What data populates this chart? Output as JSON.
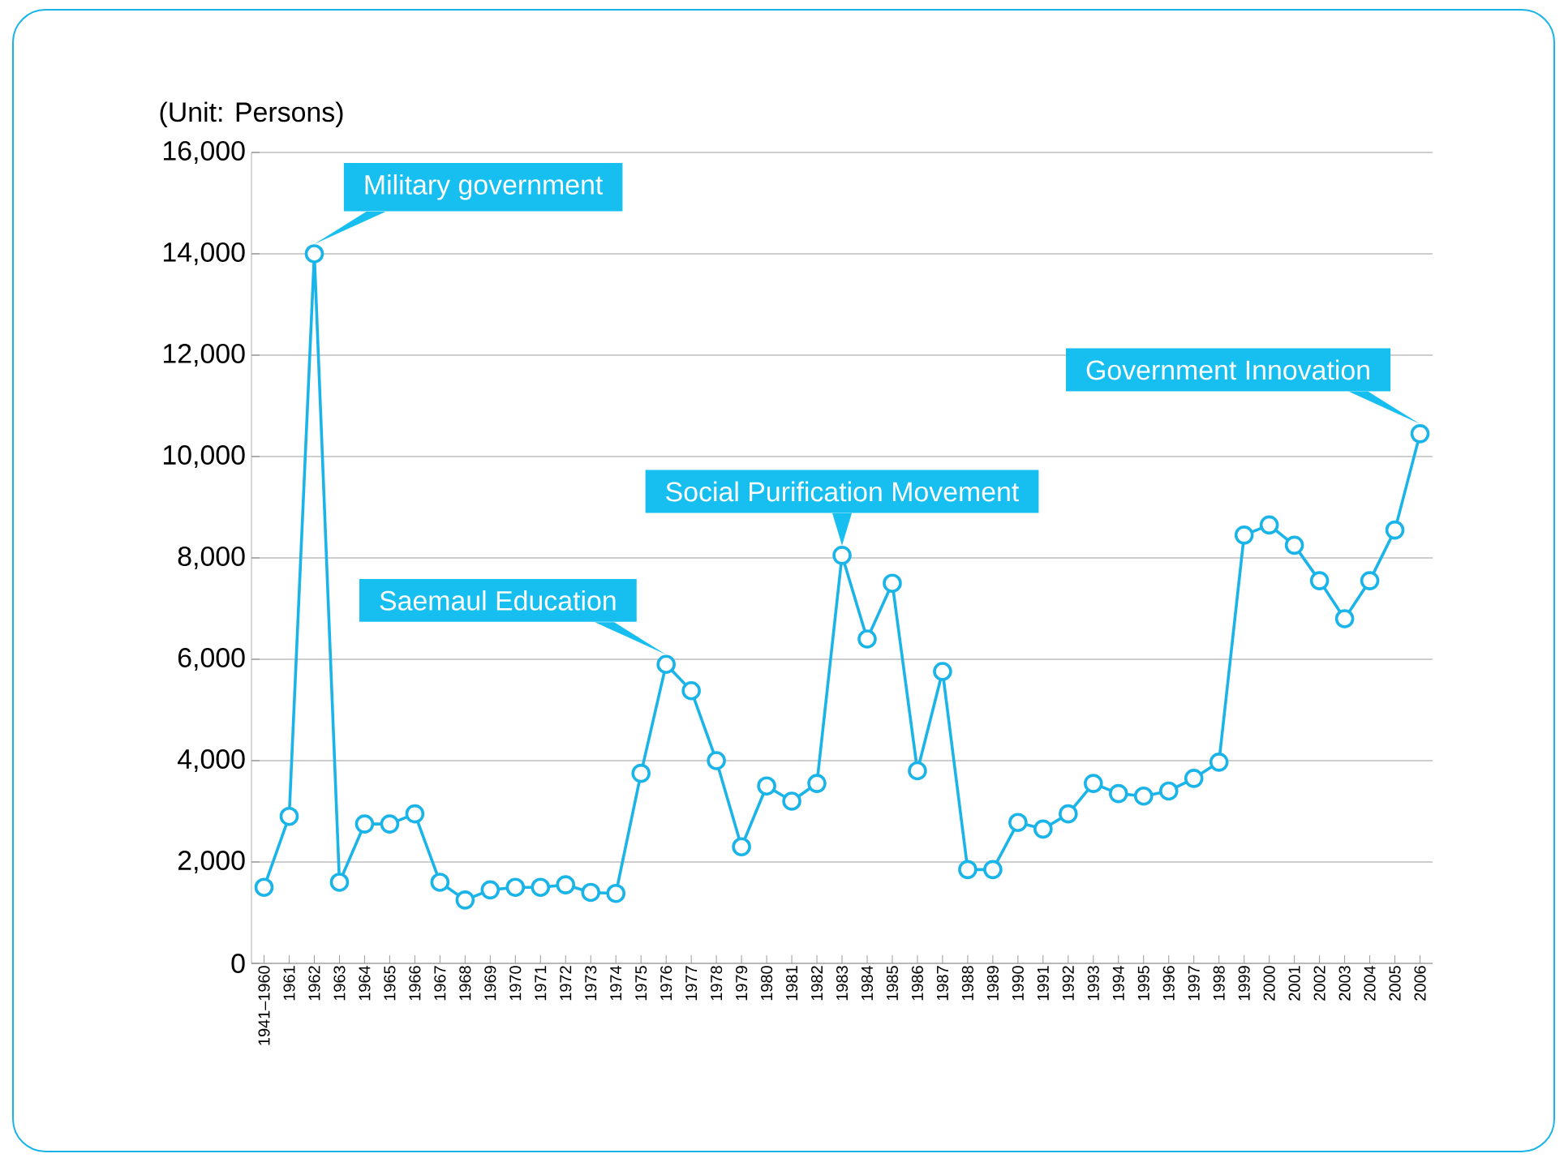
{
  "chart_data": {
    "type": "line",
    "ylabel": "(Unit: Persons)",
    "categories": [
      "1941–1960",
      "1961",
      "1962",
      "1963",
      "1964",
      "1965",
      "1966",
      "1967",
      "1968",
      "1969",
      "1970",
      "1971",
      "1972",
      "1973",
      "1974",
      "1975",
      "1976",
      "1977",
      "1978",
      "1979",
      "1980",
      "1981",
      "1982",
      "1983",
      "1984",
      "1985",
      "1986",
      "1987",
      "1988",
      "1989",
      "1990",
      "1991",
      "1992",
      "1993",
      "1994",
      "1995",
      "1996",
      "1997",
      "1998",
      "1999",
      "2000",
      "2001",
      "2002",
      "2003",
      "2004",
      "2005",
      "2006"
    ],
    "series": [
      {
        "color": "#1ab4e8",
        "values": [
          1500,
          2900,
          14000,
          1600,
          2750,
          2750,
          2950,
          1600,
          1250,
          1450,
          1500,
          1500,
          1550,
          1400,
          1380,
          3750,
          5900,
          5380,
          4000,
          2300,
          3500,
          3200,
          3550,
          8050,
          6400,
          7500,
          3800,
          5760,
          1850,
          1850,
          2780,
          2650,
          2950,
          3550,
          3350,
          3300,
          3400,
          3650,
          3970,
          8450,
          8650,
          8250,
          7550,
          6800,
          7550,
          8550,
          10450
        ]
      }
    ],
    "ylim": [
      0,
      16000
    ],
    "yticks": [
      0,
      {
        "value": 2000,
        "label": "2,000"
      },
      {
        "value": 4000,
        "label": "4,000"
      },
      {
        "value": 6000,
        "label": "6,000"
      },
      {
        "value": 8000,
        "label": "8,000"
      },
      {
        "value": 10000,
        "label": "10,000"
      },
      {
        "value": 12000,
        "label": "12,000"
      },
      {
        "value": 14000,
        "label": "14,000"
      },
      {
        "value": 16000,
        "label": "16,000"
      }
    ],
    "grid": "y",
    "marker": "circle",
    "line_style": "solid",
    "annotations": [
      {
        "text": "Military government",
        "x": "1962",
        "y": 14000
      },
      {
        "text": "Saemaul Education",
        "x": "1976",
        "y": 5900
      },
      {
        "text": "Social Purification Movement",
        "x": "1983",
        "y": 8050
      },
      {
        "text": "Government Innovation",
        "x": "2006",
        "y": 10450
      }
    ]
  }
}
